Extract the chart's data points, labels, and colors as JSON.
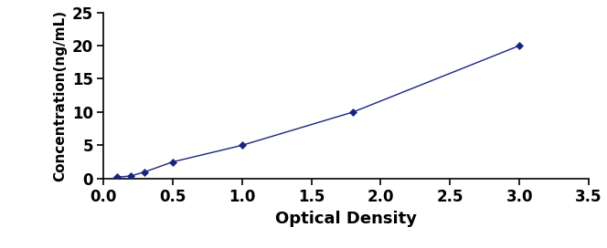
{
  "x_data": [
    0.1,
    0.2,
    0.3,
    0.5,
    1.0,
    1.8,
    3.0
  ],
  "y_data": [
    0.2,
    0.4,
    1.0,
    2.5,
    5.0,
    10.0,
    20.0
  ],
  "line_color": "#1a237e",
  "marker_color": "#1a237e",
  "marker": "D",
  "marker_size": 4.5,
  "line_width": 1.0,
  "xlabel": "Optical Density",
  "ylabel": "Concentration(ng/mL)",
  "xlim": [
    0,
    3.5
  ],
  "ylim": [
    0,
    25
  ],
  "xticks": [
    0,
    0.5,
    1.0,
    1.5,
    2.0,
    2.5,
    3.0,
    3.5
  ],
  "yticks": [
    0,
    5,
    10,
    15,
    20,
    25
  ],
  "xlabel_fontsize": 13,
  "ylabel_fontsize": 11,
  "tick_fontsize": 12,
  "background_color": "#ffffff",
  "fig_width": 6.64,
  "fig_height": 2.72,
  "dpi": 100
}
